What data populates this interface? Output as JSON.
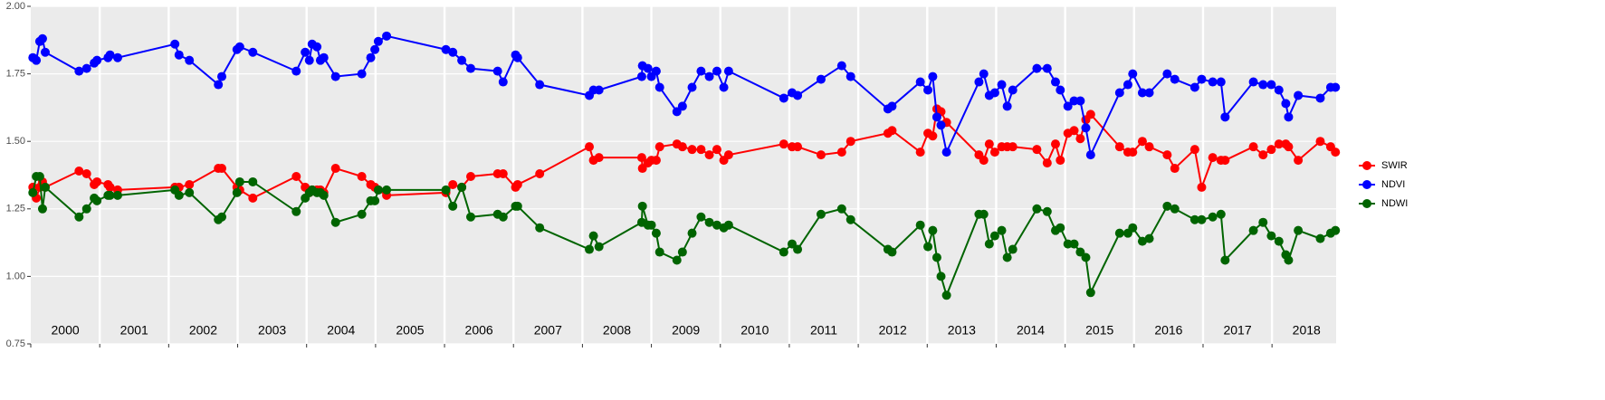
{
  "chart_data": {
    "type": "line",
    "x": [
      2000.03,
      2000.08,
      2000.13,
      2000.17,
      2000.21,
      2000.7,
      2000.81,
      2000.92,
      2000.96,
      2001.12,
      2001.15,
      2001.26,
      2002.09,
      2002.15,
      2002.3,
      2002.72,
      2002.77,
      2002.99,
      2003.03,
      2003.22,
      2003.85,
      2003.98,
      2004.04,
      2004.08,
      2004.15,
      2004.2,
      2004.25,
      2004.42,
      2004.8,
      2004.93,
      2004.99,
      2005.04,
      2005.16,
      2006.02,
      2006.12,
      2006.25,
      2006.38,
      2006.77,
      2006.85,
      2007.03,
      2007.06,
      2007.38,
      2008.1,
      2008.16,
      2008.24,
      2008.86,
      2008.87,
      2008.95,
      2009.0,
      2009.07,
      2009.12,
      2009.37,
      2009.45,
      2009.59,
      2009.72,
      2009.84,
      2009.95,
      2010.05,
      2010.12,
      2010.92,
      2011.04,
      2011.12,
      2011.46,
      2011.76,
      2011.89,
      2012.43,
      2012.49,
      2012.9,
      2013.01,
      2013.08,
      2013.14,
      2013.2,
      2013.28,
      2013.75,
      2013.82,
      2013.9,
      2013.98,
      2014.08,
      2014.16,
      2014.24,
      2014.59,
      2014.74,
      2014.86,
      2014.93,
      2015.04,
      2015.13,
      2015.22,
      2015.3,
      2015.37,
      2015.79,
      2015.91,
      2015.98,
      2016.12,
      2016.22,
      2016.48,
      2016.59,
      2016.88,
      2016.98,
      2017.14,
      2017.26,
      2017.32,
      2017.73,
      2017.87,
      2017.99,
      2018.1,
      2018.2,
      2018.24,
      2018.38,
      2018.7,
      2018.85,
      2018.92
    ],
    "series": [
      {
        "name": "SWIR",
        "color": "#ff0000",
        "values": [
          1.33,
          1.29,
          1.33,
          1.35,
          1.33,
          1.39,
          1.38,
          1.34,
          1.35,
          1.34,
          1.33,
          1.32,
          1.33,
          1.33,
          1.34,
          1.4,
          1.4,
          1.33,
          1.32,
          1.29,
          1.37,
          1.33,
          1.31,
          1.32,
          1.32,
          1.32,
          1.31,
          1.4,
          1.37,
          1.34,
          1.33,
          1.32,
          1.3,
          1.31,
          1.34,
          1.33,
          1.37,
          1.38,
          1.38,
          1.33,
          1.34,
          1.38,
          1.48,
          1.43,
          1.44,
          1.44,
          1.4,
          1.42,
          1.43,
          1.43,
          1.48,
          1.49,
          1.48,
          1.47,
          1.47,
          1.45,
          1.47,
          1.43,
          1.45,
          1.49,
          1.48,
          1.48,
          1.45,
          1.46,
          1.5,
          1.53,
          1.54,
          1.46,
          1.53,
          1.52,
          1.62,
          1.61,
          1.57,
          1.45,
          1.43,
          1.49,
          1.46,
          1.48,
          1.48,
          1.48,
          1.47,
          1.42,
          1.49,
          1.43,
          1.53,
          1.54,
          1.51,
          1.58,
          1.6,
          1.48,
          1.46,
          1.46,
          1.5,
          1.48,
          1.45,
          1.4,
          1.47,
          1.33,
          1.44,
          1.43,
          1.43,
          1.48,
          1.45,
          1.47,
          1.49,
          1.49,
          1.48,
          1.43,
          1.5,
          1.48,
          1.46
        ]
      },
      {
        "name": "NDVI",
        "color": "#0000ff",
        "values": [
          1.81,
          1.8,
          1.87,
          1.88,
          1.83,
          1.76,
          1.77,
          1.79,
          1.8,
          1.81,
          1.82,
          1.81,
          1.86,
          1.82,
          1.8,
          1.71,
          1.74,
          1.84,
          1.85,
          1.83,
          1.76,
          1.83,
          1.8,
          1.86,
          1.85,
          1.8,
          1.81,
          1.74,
          1.75,
          1.81,
          1.84,
          1.87,
          1.89,
          1.84,
          1.83,
          1.8,
          1.77,
          1.76,
          1.72,
          1.82,
          1.81,
          1.71,
          1.67,
          1.69,
          1.69,
          1.74,
          1.78,
          1.77,
          1.74,
          1.76,
          1.7,
          1.61,
          1.63,
          1.7,
          1.76,
          1.74,
          1.76,
          1.7,
          1.76,
          1.66,
          1.68,
          1.67,
          1.73,
          1.78,
          1.74,
          1.62,
          1.63,
          1.72,
          1.69,
          1.74,
          1.59,
          1.56,
          1.46,
          1.72,
          1.75,
          1.67,
          1.68,
          1.71,
          1.63,
          1.69,
          1.77,
          1.77,
          1.72,
          1.69,
          1.63,
          1.65,
          1.65,
          1.55,
          1.45,
          1.68,
          1.71,
          1.75,
          1.68,
          1.68,
          1.75,
          1.73,
          1.7,
          1.73,
          1.72,
          1.72,
          1.59,
          1.72,
          1.71,
          1.71,
          1.69,
          1.64,
          1.59,
          1.67,
          1.66,
          1.7,
          1.7
        ]
      },
      {
        "name": "NDWI",
        "color": "#006400",
        "values": [
          1.31,
          1.37,
          1.37,
          1.25,
          1.33,
          1.22,
          1.25,
          1.29,
          1.28,
          1.3,
          1.3,
          1.3,
          1.32,
          1.3,
          1.31,
          1.21,
          1.22,
          1.31,
          1.35,
          1.35,
          1.24,
          1.29,
          1.31,
          1.32,
          1.31,
          1.31,
          1.3,
          1.2,
          1.23,
          1.28,
          1.28,
          1.32,
          1.32,
          1.32,
          1.26,
          1.33,
          1.22,
          1.23,
          1.22,
          1.26,
          1.26,
          1.18,
          1.1,
          1.15,
          1.11,
          1.2,
          1.26,
          1.19,
          1.19,
          1.16,
          1.09,
          1.06,
          1.09,
          1.16,
          1.22,
          1.2,
          1.19,
          1.18,
          1.19,
          1.09,
          1.12,
          1.1,
          1.23,
          1.25,
          1.21,
          1.1,
          1.09,
          1.19,
          1.11,
          1.17,
          1.07,
          1.0,
          0.93,
          1.23,
          1.23,
          1.12,
          1.15,
          1.17,
          1.07,
          1.1,
          1.25,
          1.24,
          1.17,
          1.18,
          1.12,
          1.12,
          1.09,
          1.07,
          0.94,
          1.16,
          1.16,
          1.18,
          1.13,
          1.14,
          1.26,
          1.25,
          1.21,
          1.21,
          1.22,
          1.23,
          1.06,
          1.17,
          1.2,
          1.15,
          1.13,
          1.08,
          1.06,
          1.17,
          1.14,
          1.16,
          1.17
        ]
      }
    ],
    "xlim": [
      2000,
      2018.93
    ],
    "xticks": [
      2000,
      2001,
      2002,
      2003,
      2004,
      2005,
      2006,
      2007,
      2008,
      2009,
      2010,
      2011,
      2012,
      2013,
      2014,
      2015,
      2016,
      2017,
      2018
    ],
    "ylim": [
      0.75,
      2.0
    ],
    "yticks": [
      {
        "value": 0.75,
        "label": "0.75"
      },
      {
        "value": 1,
        "label": "1.00"
      },
      {
        "value": 1.25,
        "label": "1.25"
      },
      {
        "value": 1.5,
        "label": "1.50"
      },
      {
        "value": 1.75,
        "label": "1.75"
      },
      {
        "value": 2,
        "label": "2.00"
      }
    ],
    "grid": true,
    "legend": "right"
  }
}
